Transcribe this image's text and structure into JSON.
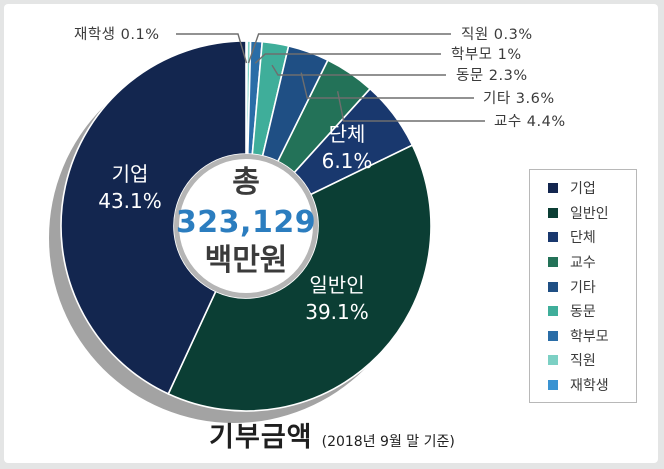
{
  "chart_data": {
    "type": "pie",
    "donut": true,
    "title": "기부금액",
    "subtitle": "(2018년 9월 말 기준)",
    "center": {
      "line1": "총",
      "value": "323,129",
      "unit": "백만원"
    },
    "slices": [
      {
        "label": "기업",
        "value": 43.1,
        "display": "43.1%",
        "color": "#13264f"
      },
      {
        "label": "일반인",
        "value": 39.1,
        "display": "39.1%",
        "color": "#0b3e34"
      },
      {
        "label": "단체",
        "value": 6.1,
        "display": "6.1%",
        "color": "#19386e"
      },
      {
        "label": "교수",
        "value": 4.4,
        "display": "4.4%",
        "color": "#237258"
      },
      {
        "label": "기타",
        "value": 3.6,
        "display": "3.6%",
        "color": "#1f4f84"
      },
      {
        "label": "동문",
        "value": 2.3,
        "display": "2.3%",
        "color": "#3fae9a"
      },
      {
        "label": "학부모",
        "value": 1,
        "display": "1%",
        "color": "#2a6da7"
      },
      {
        "label": "직원",
        "value": 0.3,
        "display": "0.3%",
        "color": "#7cd0c4"
      },
      {
        "label": "재학생",
        "value": 0.1,
        "display": "0.1%",
        "color": "#3a93d2"
      }
    ],
    "legend_position": "right"
  }
}
